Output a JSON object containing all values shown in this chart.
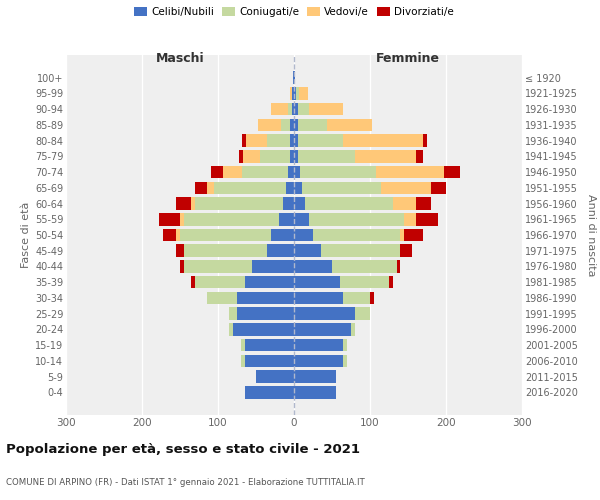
{
  "age_groups": [
    "0-4",
    "5-9",
    "10-14",
    "15-19",
    "20-24",
    "25-29",
    "30-34",
    "35-39",
    "40-44",
    "45-49",
    "50-54",
    "55-59",
    "60-64",
    "65-69",
    "70-74",
    "75-79",
    "80-84",
    "85-89",
    "90-94",
    "95-99",
    "100+"
  ],
  "birth_years": [
    "2016-2020",
    "2011-2015",
    "2006-2010",
    "2001-2005",
    "1996-2000",
    "1991-1995",
    "1986-1990",
    "1981-1985",
    "1976-1980",
    "1971-1975",
    "1966-1970",
    "1961-1965",
    "1956-1960",
    "1951-1955",
    "1946-1950",
    "1941-1945",
    "1936-1940",
    "1931-1935",
    "1926-1930",
    "1921-1925",
    "≤ 1920"
  ],
  "colors": {
    "celibe": "#4472C4",
    "coniugato": "#c5d9a0",
    "vedovo": "#ffc878",
    "divorziato": "#c00000"
  },
  "males": {
    "celibe": [
      65,
      50,
      65,
      65,
      80,
      75,
      75,
      65,
      55,
      35,
      30,
      20,
      15,
      10,
      8,
      5,
      5,
      5,
      3,
      2,
      1
    ],
    "coniugato": [
      0,
      0,
      5,
      5,
      5,
      10,
      40,
      65,
      90,
      110,
      120,
      125,
      115,
      95,
      60,
      40,
      30,
      12,
      5,
      0,
      0
    ],
    "vedovo": [
      0,
      0,
      0,
      0,
      0,
      0,
      0,
      0,
      0,
      0,
      5,
      5,
      5,
      10,
      25,
      22,
      28,
      30,
      22,
      3,
      0
    ],
    "divorziato": [
      0,
      0,
      0,
      0,
      0,
      0,
      0,
      5,
      5,
      10,
      18,
      28,
      20,
      15,
      16,
      5,
      5,
      0,
      0,
      0,
      0
    ]
  },
  "females": {
    "nubile": [
      55,
      55,
      65,
      65,
      75,
      80,
      65,
      60,
      50,
      35,
      25,
      20,
      15,
      10,
      8,
      5,
      5,
      5,
      5,
      2,
      1
    ],
    "coniugata": [
      0,
      0,
      5,
      5,
      5,
      20,
      35,
      65,
      85,
      105,
      115,
      125,
      115,
      105,
      100,
      75,
      60,
      38,
      15,
      5,
      0
    ],
    "vedova": [
      0,
      0,
      0,
      0,
      0,
      0,
      0,
      0,
      0,
      0,
      5,
      15,
      30,
      65,
      90,
      80,
      105,
      60,
      45,
      12,
      0
    ],
    "divorziata": [
      0,
      0,
      0,
      0,
      0,
      0,
      5,
      5,
      5,
      15,
      25,
      30,
      20,
      20,
      20,
      10,
      5,
      0,
      0,
      0,
      0
    ]
  },
  "title": "Popolazione per età, sesso e stato civile - 2021",
  "subtitle": "COMUNE DI ARPINO (FR) - Dati ISTAT 1° gennaio 2021 - Elaborazione TUTTITALIA.IT",
  "ylabel_left": "Fasce di età",
  "ylabel_right": "Anni di nascita",
  "xlim": 300,
  "legend_labels": [
    "Celibi/Nubili",
    "Coniugati/e",
    "Vedovi/e",
    "Divorziati/e"
  ],
  "bg_color": "#efefef"
}
